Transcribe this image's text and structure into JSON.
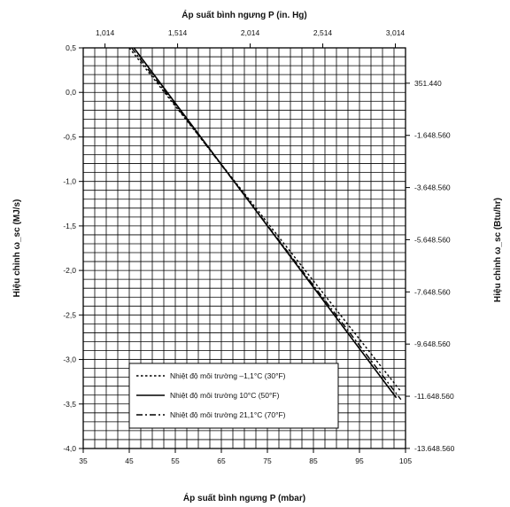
{
  "chart_data": {
    "type": "line",
    "xlabel": "Áp suất bình ngưng P (mbar)",
    "x2label": "Áp suất bình ngưng P (in. Hg)",
    "ylabel": "Hiệu chỉnh ω_sc (MJ/s)",
    "y2label": "Hiệu chỉnh ω_sc (Btu/hr)",
    "xlim": [
      35,
      105
    ],
    "ylim": [
      -4.0,
      0.5
    ],
    "x_ticks": [
      "35",
      "45",
      "55",
      "65",
      "75",
      "85",
      "95",
      "105"
    ],
    "y_ticks": [
      "0,5",
      "0,0",
      "-0,5",
      "-1,0",
      "-1,5",
      "-2,0",
      "-2,5",
      "-3,0",
      "-3,5",
      "-4,0"
    ],
    "x2_ticks": [
      "1,014",
      "1,514",
      "2,014",
      "2,514",
      "3,014"
    ],
    "y2_ticks": [
      "351.440",
      "-1.648.560",
      "-3.648.560",
      "-5.648.560",
      "-7.648.560",
      "-9.648.560",
      "-11.648.560",
      "-13.648.560"
    ],
    "grid": true,
    "legend_position": "bottom-right",
    "series": [
      {
        "name": "Nhiệt độ môi trường –1,1°C (30°F)",
        "style": "dotted",
        "x": [
          45,
          104
        ],
        "y": [
          0.5,
          -3.36
        ]
      },
      {
        "name": "Nhiệt độ môi trường 10°C (50°F)",
        "style": "solid",
        "x": [
          46,
          103
        ],
        "y": [
          0.5,
          -3.43
        ]
      },
      {
        "name": "Nhiệt độ môi trường 21,1°C (70°F)",
        "style": "dashdot",
        "x": [
          45.5,
          104
        ],
        "y": [
          0.5,
          -3.45
        ]
      }
    ]
  }
}
